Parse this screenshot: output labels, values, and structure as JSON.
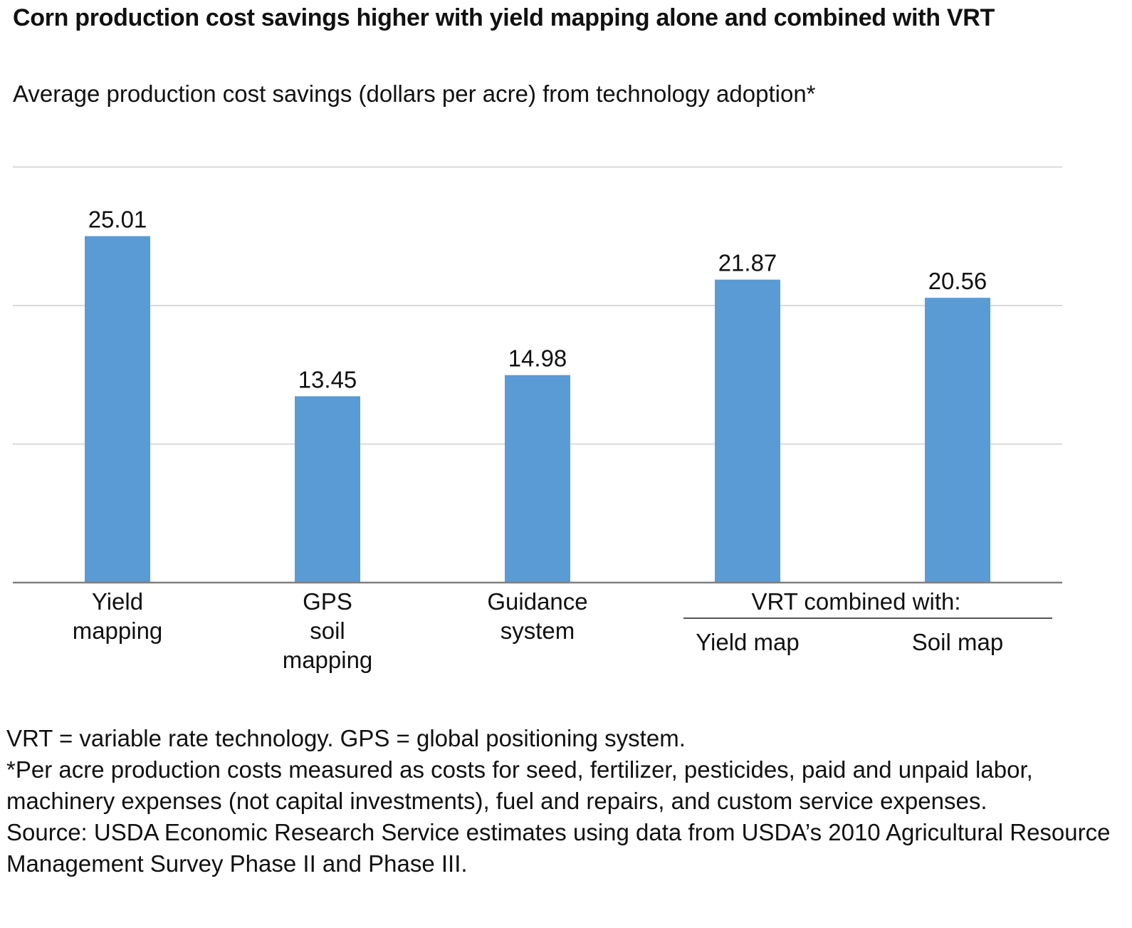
{
  "title": "Corn production cost savings higher with yield mapping alone and combined with VRT",
  "subtitle": "Average production cost savings (dollars per acre) from technology adoption*",
  "chart_data": {
    "type": "bar",
    "title": "Corn production cost savings higher with yield mapping alone and combined with VRT",
    "ylabel": "Average production cost savings (dollars per acre) from technology adoption*",
    "xlabel": "",
    "ylim": [
      0,
      30
    ],
    "gridlines": [
      10,
      20,
      30
    ],
    "grid": true,
    "categories": [
      [
        "Yield",
        "mapping"
      ],
      [
        "GPS",
        "soil",
        "mapping"
      ],
      [
        "Guidance",
        "system"
      ],
      [
        "Yield map"
      ],
      [
        "Soil map"
      ]
    ],
    "values": [
      25.01,
      13.45,
      14.98,
      21.87,
      20.56
    ],
    "value_labels": [
      "25.01",
      "13.45",
      "14.98",
      "21.87",
      "20.56"
    ],
    "group_label": "VRT combined with:",
    "group_members": [
      3,
      4
    ],
    "bar_color": "#5b9bd5",
    "grid_color": "#d9d9d9",
    "axis_color": "#808080"
  },
  "notes": [
    "VRT = variable rate technology. GPS = global positioning system.",
    "*Per acre production costs measured as costs for seed, fertilizer, pesticides, paid and unpaid labor, machinery expenses (not capital investments), fuel and repairs, and custom service expenses.",
    "Source: USDA Economic Research Service estimates using data from USDA’s 2010 Agricultural Resource Management Survey Phase II and Phase III."
  ]
}
